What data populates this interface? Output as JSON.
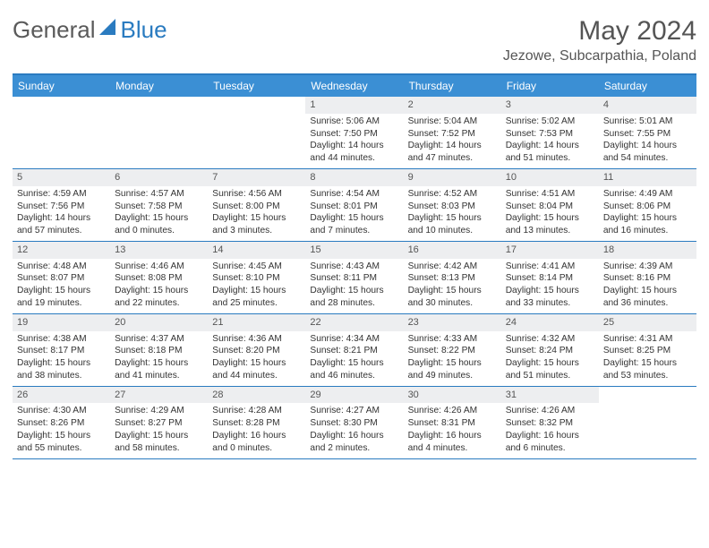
{
  "brand": {
    "name1": "General",
    "name2": "Blue"
  },
  "title": "May 2024",
  "location": "Jezowe, Subcarpathia, Poland",
  "day_headers": [
    "Sunday",
    "Monday",
    "Tuesday",
    "Wednesday",
    "Thursday",
    "Friday",
    "Saturday"
  ],
  "colors": {
    "header_bg": "#3b8fd4",
    "border": "#2a7bc0",
    "daynum_bg": "#edeef0"
  },
  "weeks": [
    [
      {
        "n": "",
        "sr": "",
        "ss": "",
        "dl": ""
      },
      {
        "n": "",
        "sr": "",
        "ss": "",
        "dl": ""
      },
      {
        "n": "",
        "sr": "",
        "ss": "",
        "dl": ""
      },
      {
        "n": "1",
        "sr": "Sunrise: 5:06 AM",
        "ss": "Sunset: 7:50 PM",
        "dl": "Daylight: 14 hours and 44 minutes."
      },
      {
        "n": "2",
        "sr": "Sunrise: 5:04 AM",
        "ss": "Sunset: 7:52 PM",
        "dl": "Daylight: 14 hours and 47 minutes."
      },
      {
        "n": "3",
        "sr": "Sunrise: 5:02 AM",
        "ss": "Sunset: 7:53 PM",
        "dl": "Daylight: 14 hours and 51 minutes."
      },
      {
        "n": "4",
        "sr": "Sunrise: 5:01 AM",
        "ss": "Sunset: 7:55 PM",
        "dl": "Daylight: 14 hours and 54 minutes."
      }
    ],
    [
      {
        "n": "5",
        "sr": "Sunrise: 4:59 AM",
        "ss": "Sunset: 7:56 PM",
        "dl": "Daylight: 14 hours and 57 minutes."
      },
      {
        "n": "6",
        "sr": "Sunrise: 4:57 AM",
        "ss": "Sunset: 7:58 PM",
        "dl": "Daylight: 15 hours and 0 minutes."
      },
      {
        "n": "7",
        "sr": "Sunrise: 4:56 AM",
        "ss": "Sunset: 8:00 PM",
        "dl": "Daylight: 15 hours and 3 minutes."
      },
      {
        "n": "8",
        "sr": "Sunrise: 4:54 AM",
        "ss": "Sunset: 8:01 PM",
        "dl": "Daylight: 15 hours and 7 minutes."
      },
      {
        "n": "9",
        "sr": "Sunrise: 4:52 AM",
        "ss": "Sunset: 8:03 PM",
        "dl": "Daylight: 15 hours and 10 minutes."
      },
      {
        "n": "10",
        "sr": "Sunrise: 4:51 AM",
        "ss": "Sunset: 8:04 PM",
        "dl": "Daylight: 15 hours and 13 minutes."
      },
      {
        "n": "11",
        "sr": "Sunrise: 4:49 AM",
        "ss": "Sunset: 8:06 PM",
        "dl": "Daylight: 15 hours and 16 minutes."
      }
    ],
    [
      {
        "n": "12",
        "sr": "Sunrise: 4:48 AM",
        "ss": "Sunset: 8:07 PM",
        "dl": "Daylight: 15 hours and 19 minutes."
      },
      {
        "n": "13",
        "sr": "Sunrise: 4:46 AM",
        "ss": "Sunset: 8:08 PM",
        "dl": "Daylight: 15 hours and 22 minutes."
      },
      {
        "n": "14",
        "sr": "Sunrise: 4:45 AM",
        "ss": "Sunset: 8:10 PM",
        "dl": "Daylight: 15 hours and 25 minutes."
      },
      {
        "n": "15",
        "sr": "Sunrise: 4:43 AM",
        "ss": "Sunset: 8:11 PM",
        "dl": "Daylight: 15 hours and 28 minutes."
      },
      {
        "n": "16",
        "sr": "Sunrise: 4:42 AM",
        "ss": "Sunset: 8:13 PM",
        "dl": "Daylight: 15 hours and 30 minutes."
      },
      {
        "n": "17",
        "sr": "Sunrise: 4:41 AM",
        "ss": "Sunset: 8:14 PM",
        "dl": "Daylight: 15 hours and 33 minutes."
      },
      {
        "n": "18",
        "sr": "Sunrise: 4:39 AM",
        "ss": "Sunset: 8:16 PM",
        "dl": "Daylight: 15 hours and 36 minutes."
      }
    ],
    [
      {
        "n": "19",
        "sr": "Sunrise: 4:38 AM",
        "ss": "Sunset: 8:17 PM",
        "dl": "Daylight: 15 hours and 38 minutes."
      },
      {
        "n": "20",
        "sr": "Sunrise: 4:37 AM",
        "ss": "Sunset: 8:18 PM",
        "dl": "Daylight: 15 hours and 41 minutes."
      },
      {
        "n": "21",
        "sr": "Sunrise: 4:36 AM",
        "ss": "Sunset: 8:20 PM",
        "dl": "Daylight: 15 hours and 44 minutes."
      },
      {
        "n": "22",
        "sr": "Sunrise: 4:34 AM",
        "ss": "Sunset: 8:21 PM",
        "dl": "Daylight: 15 hours and 46 minutes."
      },
      {
        "n": "23",
        "sr": "Sunrise: 4:33 AM",
        "ss": "Sunset: 8:22 PM",
        "dl": "Daylight: 15 hours and 49 minutes."
      },
      {
        "n": "24",
        "sr": "Sunrise: 4:32 AM",
        "ss": "Sunset: 8:24 PM",
        "dl": "Daylight: 15 hours and 51 minutes."
      },
      {
        "n": "25",
        "sr": "Sunrise: 4:31 AM",
        "ss": "Sunset: 8:25 PM",
        "dl": "Daylight: 15 hours and 53 minutes."
      }
    ],
    [
      {
        "n": "26",
        "sr": "Sunrise: 4:30 AM",
        "ss": "Sunset: 8:26 PM",
        "dl": "Daylight: 15 hours and 55 minutes."
      },
      {
        "n": "27",
        "sr": "Sunrise: 4:29 AM",
        "ss": "Sunset: 8:27 PM",
        "dl": "Daylight: 15 hours and 58 minutes."
      },
      {
        "n": "28",
        "sr": "Sunrise: 4:28 AM",
        "ss": "Sunset: 8:28 PM",
        "dl": "Daylight: 16 hours and 0 minutes."
      },
      {
        "n": "29",
        "sr": "Sunrise: 4:27 AM",
        "ss": "Sunset: 8:30 PM",
        "dl": "Daylight: 16 hours and 2 minutes."
      },
      {
        "n": "30",
        "sr": "Sunrise: 4:26 AM",
        "ss": "Sunset: 8:31 PM",
        "dl": "Daylight: 16 hours and 4 minutes."
      },
      {
        "n": "31",
        "sr": "Sunrise: 4:26 AM",
        "ss": "Sunset: 8:32 PM",
        "dl": "Daylight: 16 hours and 6 minutes."
      },
      {
        "n": "",
        "sr": "",
        "ss": "",
        "dl": ""
      }
    ]
  ]
}
